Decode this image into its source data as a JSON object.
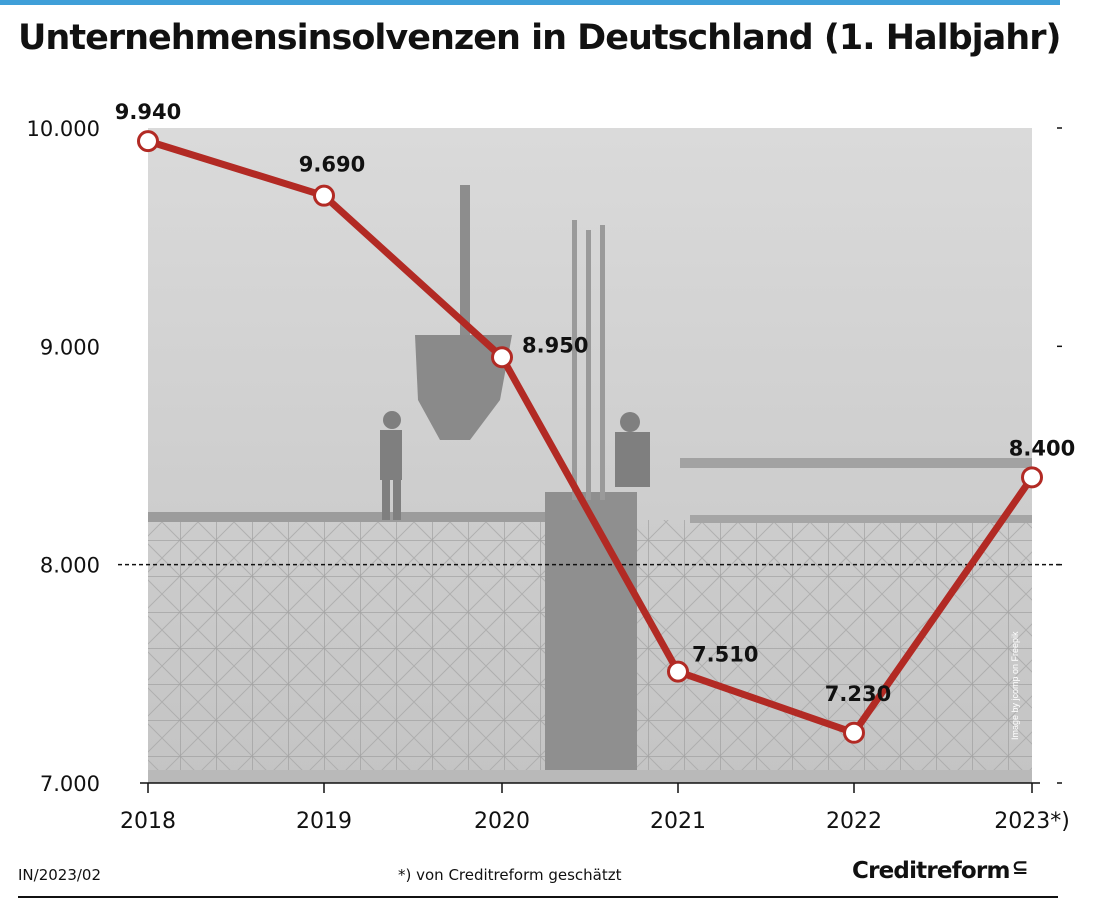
{
  "title": "Unternehmensinsolvenzen in Deutschland (1. Halbjahr)",
  "footer": {
    "code": "IN/2023/02",
    "footnote": "*) von Creditreform geschätzt",
    "logo_text": "Creditreform",
    "logo_icon": "creditreform-c-icon"
  },
  "watermark": "Image by jcomp on Freepik",
  "colors": {
    "line": "#b22a24",
    "accent_rule": "#3f9fd8",
    "logo": "#2e9fdc",
    "background_photo": "#cfcfcf"
  },
  "chart_data": {
    "type": "line",
    "title": "Unternehmensinsolvenzen in Deutschland (1. Halbjahr)",
    "categories": [
      "2018",
      "2019",
      "2020",
      "2021",
      "2022",
      "2023*)"
    ],
    "values": [
      9940,
      9690,
      8950,
      7510,
      7230,
      8400
    ],
    "data_labels": [
      "9.940",
      "9.690",
      "8.950",
      "7.510",
      "7.230",
      "8.400"
    ],
    "yticks": [
      7000,
      8000,
      9000,
      10000
    ],
    "ytick_labels": [
      "7.000",
      "8.000",
      "9.000",
      "10.000"
    ],
    "ylim": [
      7000,
      10000
    ],
    "reference_line": 8000,
    "xlabel": "",
    "ylabel": "",
    "grid": false,
    "legend": "none"
  }
}
